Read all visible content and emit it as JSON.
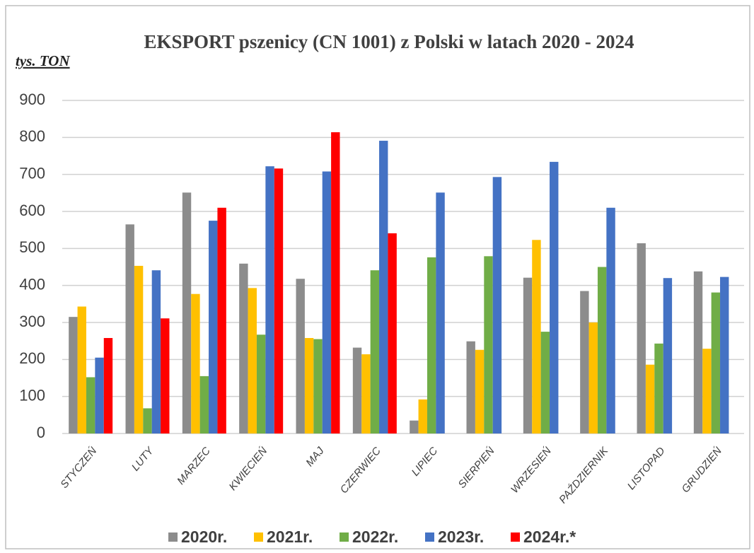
{
  "chart_data": {
    "type": "bar",
    "title": "EKSPORT pszenicy (CN 1001) z Polski w latach  2020 - 2024",
    "y_label": "tys. TON",
    "categories": [
      "STYCZEŃ",
      "LUTY",
      "MARZEC",
      "KWIECIEŃ",
      "MAJ",
      "CZERWIEC",
      "LIPIEC",
      "SIERPIEŃ",
      "WRZESIEŃ",
      "PAŹDZIERNIK",
      "LISTOPAD",
      "GRUDZIEŃ"
    ],
    "series": [
      {
        "name": "2020r.",
        "color": "#8c8c8c",
        "values": [
          315,
          565,
          651,
          459,
          418,
          232,
          35,
          249,
          421,
          385,
          514,
          438
        ]
      },
      {
        "name": "2021r.",
        "color": "#ffc000",
        "values": [
          343,
          453,
          377,
          393,
          258,
          214,
          92,
          226,
          523,
          300,
          186,
          229
        ]
      },
      {
        "name": "2022r.",
        "color": "#70ad47",
        "values": [
          152,
          68,
          155,
          267,
          255,
          441,
          476,
          479,
          275,
          450,
          243,
          381
        ]
      },
      {
        "name": "2023r.",
        "color": "#4472c4",
        "values": [
          205,
          441,
          575,
          722,
          708,
          791,
          651,
          693,
          734,
          610,
          420,
          423
        ]
      },
      {
        "name": "2024r.*",
        "color": "#ff0000",
        "values": [
          258,
          311,
          610,
          716,
          814,
          541,
          null,
          null,
          null,
          null,
          null,
          null
        ]
      }
    ],
    "ylim": [
      0,
      900
    ],
    "yticks": [
      0,
      100,
      200,
      300,
      400,
      500,
      600,
      700,
      800,
      900
    ],
    "grid": true
  }
}
